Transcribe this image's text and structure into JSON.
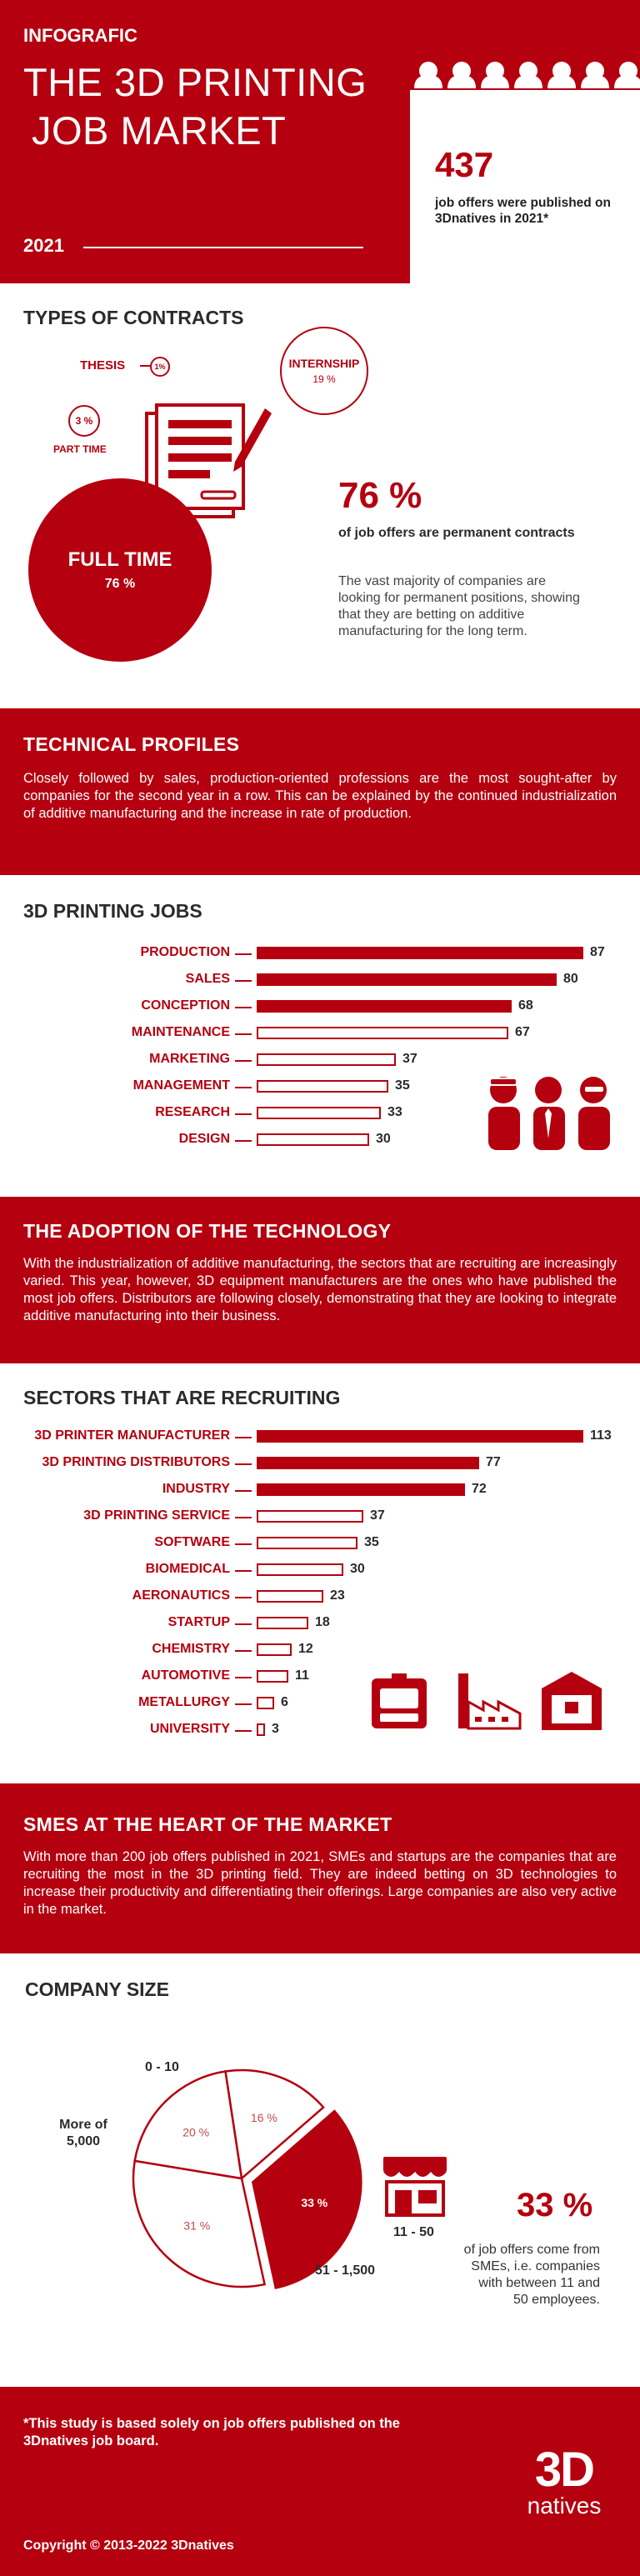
{
  "header": {
    "kicker": "INFOGRAFIC",
    "title_line1": "THE 3D PRINTING",
    "title_line2": "JOB MARKET",
    "year": "2021",
    "stat_value": "437",
    "stat_caption": "job offers were published on 3Dnatives in 2021*"
  },
  "contracts": {
    "title": "TYPES OF CONTRACTS",
    "thesis_label": "THESIS",
    "thesis_value": "1%",
    "internship_label": "INTERNSHIP",
    "internship_value": "19 %",
    "parttime_value": "3 %",
    "parttime_label": "PART TIME",
    "fulltime_label": "FULL TIME",
    "fulltime_value": "76 %",
    "highlight_value": "76 %",
    "highlight_caption": "of job offers are permanent contracts",
    "description": "The vast majority of companies are looking for permanent positions, showing that they are betting on additive manufacturing for the long term."
  },
  "technical": {
    "title": "TECHNICAL PROFILES",
    "text": "Closely followed by sales, production-oriented professions are the most sought-after by companies for the second year in a row. This can be explained by the continued industrialization of additive manufacturing and the increase in rate of production."
  },
  "adoption": {
    "title": "THE ADOPTION OF THE TECHNOLOGY",
    "text": "With the industrialization of additive manufacturing, the sectors that are recruiting are increasingly varied. This year, however, 3D equipment manufacturers are the ones who have published the most job offers. Distributors are following closely, demonstrating that they are looking to integrate additive manufacturing into their business."
  },
  "smes": {
    "title": "SMES AT THE HEART OF THE MARKET",
    "text": "With more than 200 job offers published in 2021, SMEs and startups are the companies that are recruiting the most in the 3D printing field. They are indeed betting on 3D technologies to increase their productivity and differentiating their offerings. Large companies are also very active in the market."
  },
  "company": {
    "title": "COMPANY SIZE",
    "highlight_value": "33 %",
    "highlight_caption": "of job offers come from SMEs, i.e. companies with between 11 and 50 employees."
  },
  "footer": {
    "note": "*This study is based solely on job offers published on the 3Dnatives job board.",
    "copyright": "Copyright © 2013-2022 3Dnatives",
    "logo_top": "3D",
    "logo_bottom": "natives"
  },
  "colors": {
    "accent": "#b5000f",
    "text": "#2b2b2b",
    "background": "#ffffff"
  },
  "chart_data": [
    {
      "type": "bar",
      "title": "3D PRINTING JOBS",
      "orientation": "horizontal",
      "categories": [
        "PRODUCTION",
        "SALES",
        "CONCEPTION",
        "MAINTENANCE",
        "MARKETING",
        "MANAGEMENT",
        "RESEARCH",
        "DESIGN"
      ],
      "values": [
        87,
        80,
        68,
        67,
        37,
        35,
        33,
        30
      ],
      "filled": [
        true,
        true,
        true,
        false,
        false,
        false,
        false,
        false
      ]
    },
    {
      "type": "bar",
      "title": "SECTORS THAT ARE RECRUITING",
      "orientation": "horizontal",
      "categories": [
        "3D PRINTER MANUFACTURER",
        "3D PRINTING DISTRIBUTORS",
        "INDUSTRY",
        "3D PRINTING SERVICE",
        "SOFTWARE",
        "BIOMEDICAL",
        "AERONAUTICS",
        "STARTUP",
        "CHEMISTRY",
        "AUTOMOTIVE",
        "METALLURGY",
        "UNIVERSITY"
      ],
      "values": [
        113,
        77,
        72,
        37,
        35,
        30,
        23,
        18,
        12,
        11,
        6,
        3
      ],
      "filled": [
        true,
        true,
        true,
        false,
        false,
        false,
        false,
        false,
        false,
        false,
        false,
        false
      ]
    },
    {
      "type": "pie",
      "title": "COMPANY SIZE",
      "categories": [
        "0 - 10",
        "11 - 50",
        "51 - 1,500",
        "More of 5,000"
      ],
      "values": [
        16,
        33,
        31,
        20
      ],
      "labels": [
        "16 %",
        "33 %",
        "31 %",
        "20 %"
      ],
      "highlighted": "11 - 50"
    }
  ]
}
